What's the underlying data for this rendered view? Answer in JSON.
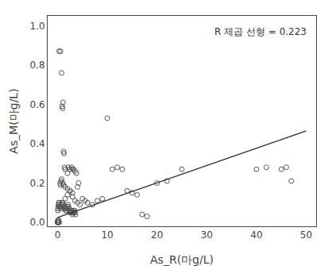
{
  "chart_data": {
    "type": "scatter",
    "xlabel": "As_R(마g/L)",
    "ylabel": "As_M(마g/L)",
    "annotation": "R 제곱 선형 = 0.223",
    "xlim": [
      -2,
      52
    ],
    "ylim": [
      -0.02,
      1.05
    ],
    "xticks": [
      0,
      10,
      20,
      30,
      40,
      50
    ],
    "yticks": [
      {
        "value": 0.0,
        "label": "0.0"
      },
      0.2,
      0.4,
      0.6,
      0.8,
      {
        "value": 1.0,
        "label": "1.0"
      }
    ],
    "grid": false,
    "series": [
      {
        "type": "scatter",
        "color": "#555555",
        "marker": "open circle",
        "x": [
          0.3,
          0.6,
          0.8,
          0.9,
          1.0,
          1.1,
          1.2,
          1.3,
          1.4,
          1.5,
          0.5,
          0.6,
          0.7,
          0.8,
          1.0,
          1.2,
          1.5,
          2.0,
          2.5,
          3.0,
          2.0,
          2.2,
          2.5,
          2.8,
          3.0,
          3.2,
          3.5,
          3.8,
          4.0,
          4.2,
          1.0,
          1.5,
          2.0,
          2.5,
          3.0,
          3.5,
          4.0,
          4.5,
          5.0,
          5.5,
          6.0,
          7.0,
          8.0,
          9.0,
          10.0,
          11.0,
          12.0,
          13.0,
          14.0,
          15.0,
          16.0,
          17.0,
          18.0,
          20.0,
          22.0,
          25.0,
          40.0,
          42.0,
          45.0,
          46.0,
          47.0,
          0.05,
          0.1,
          0.15,
          0.2,
          0.25,
          0.3,
          0.35,
          0.4,
          0.5,
          0.6,
          0.7,
          0.8,
          0.9,
          1.0,
          1.1,
          1.2,
          1.3,
          1.4,
          1.5,
          1.6,
          1.7,
          1.8,
          1.9,
          2.0,
          2.1,
          2.2,
          2.3,
          2.4,
          2.5,
          2.6,
          2.7,
          2.8,
          2.9,
          3.0,
          3.1,
          3.2,
          3.3,
          3.4,
          3.5,
          3.6,
          0.0,
          0.0,
          0.0,
          0.05,
          0.1,
          0.15,
          0.2,
          0.25,
          0.3
        ],
        "values": [
          0.87,
          0.87,
          0.76,
          0.59,
          0.58,
          0.61,
          0.36,
          0.35,
          0.28,
          0.27,
          0.2,
          0.19,
          0.21,
          0.22,
          0.2,
          0.19,
          0.18,
          0.17,
          0.16,
          0.15,
          0.25,
          0.28,
          0.27,
          0.28,
          0.27,
          0.27,
          0.26,
          0.25,
          0.18,
          0.2,
          0.1,
          0.12,
          0.14,
          0.16,
          0.13,
          0.11,
          0.1,
          0.09,
          0.12,
          0.11,
          0.1,
          0.09,
          0.11,
          0.12,
          0.53,
          0.27,
          0.28,
          0.27,
          0.16,
          0.15,
          0.14,
          0.04,
          0.03,
          0.2,
          0.21,
          0.27,
          0.27,
          0.28,
          0.27,
          0.28,
          0.21,
          0.06,
          0.07,
          0.08,
          0.09,
          0.1,
          0.1,
          0.09,
          0.08,
          0.08,
          0.07,
          0.08,
          0.09,
          0.1,
          0.1,
          0.09,
          0.08,
          0.07,
          0.08,
          0.07,
          0.06,
          0.07,
          0.06,
          0.08,
          0.07,
          0.09,
          0.08,
          0.07,
          0.06,
          0.05,
          0.06,
          0.05,
          0.06,
          0.05,
          0.04,
          0.05,
          0.06,
          0.05,
          0.06,
          0.05,
          0.04,
          0.0,
          0.0,
          0.0,
          0.01,
          0.01,
          0.0,
          0.01,
          0.0,
          0.0
        ]
      },
      {
        "type": "line",
        "color": "#333333",
        "line_style": "solid",
        "x": [
          0,
          50
        ],
        "values": [
          0.025,
          0.465
        ]
      }
    ]
  }
}
